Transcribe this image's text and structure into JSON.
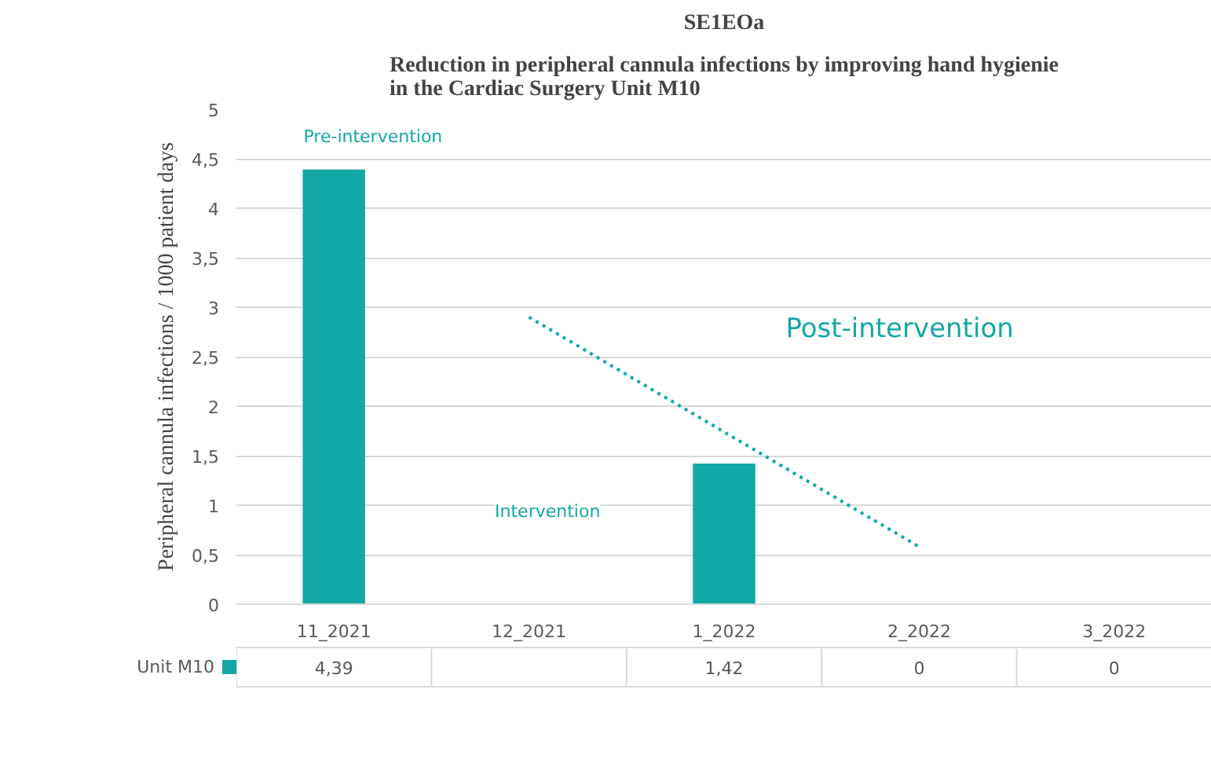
{
  "chart_data": {
    "type": "bar",
    "title": "SE1EOa",
    "subtitle": "Reduction in peripheral cannula infections by improving hand hygienie\nin the Cardiac Surgery Unit M10",
    "ylabel": "Peripheral cannula infections / 1000 patient days",
    "categories": [
      "11_2021",
      "12_2021",
      "1_2022",
      "2_2022",
      "3_2022"
    ],
    "series": [
      {
        "name": "Unit M10",
        "color": "#13a8a6",
        "values": [
          4.39,
          null,
          1.42,
          0,
          0
        ],
        "value_labels": [
          "4,39",
          null,
          "1,42",
          "0",
          "0"
        ]
      },
      {
        "type": "line",
        "values": [
          null,
          2.9,
          1.74,
          0.58,
          null
        ],
        "color": "#13a8a6",
        "line_style": "dotted"
      }
    ],
    "ylim": [
      0,
      5
    ],
    "yticks": [
      0,
      {
        "value": 0.5,
        "label": "0,5"
      },
      1,
      {
        "value": 1.5,
        "label": "1,5"
      },
      2,
      {
        "value": 2.5,
        "label": "2,5"
      },
      3,
      {
        "value": 3.5,
        "label": "3,5"
      },
      4,
      {
        "value": 4.5,
        "label": "4,5"
      },
      5
    ],
    "grid": "y",
    "legend": "bottom left",
    "annotations": [
      "Pre-intervention",
      "Intervention",
      "Post-intervention"
    ]
  }
}
